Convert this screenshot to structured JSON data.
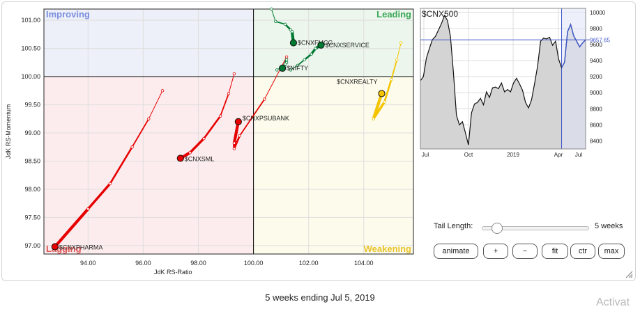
{
  "rrg": {
    "quadrants": {
      "improving": {
        "label": "Improving",
        "color": "#7b8ee0"
      },
      "leading": {
        "label": "Leading",
        "color": "#3aa757"
      },
      "weakening": {
        "label": "Weakening",
        "color": "#e9c32a"
      },
      "lagging": {
        "label": "Lagging",
        "color": "#e05353"
      }
    },
    "xlabel": "JdK RS-Ratio",
    "ylabel": "JdK RS-Momentum",
    "xlim": [
      92.4,
      105.8
    ],
    "ylim": [
      96.85,
      101.2
    ],
    "xticks": [
      "94.00",
      "96.00",
      "98.00",
      "100.00",
      "102.00",
      "104.00"
    ],
    "xtick_values": [
      94,
      96,
      98,
      100,
      102,
      104
    ],
    "yticks": [
      "101.00",
      "100.50",
      "100.00",
      "99.50",
      "99.00",
      "98.50",
      "98.00",
      "97.50",
      "97.00"
    ],
    "ytick_values": [
      101,
      100.5,
      100,
      99.5,
      99,
      98.5,
      98,
      97.5,
      97
    ],
    "center": [
      100,
      100
    ]
  },
  "chart_data": [
    {
      "type": "scatter",
      "title": "",
      "xlabel": "JdK RS-Ratio",
      "ylabel": "JdK RS-Momentum",
      "xlim": [
        92.4,
        105.8
      ],
      "ylim": [
        96.85,
        101.2
      ],
      "grid": true,
      "series": [
        {
          "name": "$CNXPHARMA",
          "color": "#e60000",
          "tail": [
            [
              96.7,
              99.75
            ],
            [
              96.2,
              99.25
            ],
            [
              95.6,
              98.75
            ],
            [
              94.8,
              98.1
            ],
            [
              94.0,
              97.65
            ],
            [
              92.8,
              96.98
            ]
          ]
        },
        {
          "name": "$CNXSML",
          "color": "#e60000",
          "tail": [
            [
              99.3,
              100.05
            ],
            [
              99.1,
              99.7
            ],
            [
              98.8,
              99.3
            ],
            [
              98.2,
              98.9
            ],
            [
              97.7,
              98.65
            ],
            [
              97.35,
              98.55
            ]
          ]
        },
        {
          "name": "$CNXPSUBANK",
          "color": "#e60000",
          "tail": [
            [
              101.2,
              100.35
            ],
            [
              100.4,
              99.6
            ],
            [
              99.5,
              98.95
            ],
            [
              99.3,
              98.72
            ],
            [
              99.3,
              98.82
            ],
            [
              99.45,
              99.2
            ]
          ]
        },
        {
          "name": "$CNXFMCG",
          "color": "#007a33",
          "tail": [
            [
              100.65,
              101.2
            ],
            [
              100.8,
              100.98
            ],
            [
              101.15,
              100.93
            ],
            [
              101.35,
              100.83
            ],
            [
              101.4,
              100.8
            ],
            [
              101.45,
              100.6
            ]
          ]
        },
        {
          "name": "$CNXSERVICE",
          "color": "#007a33",
          "tail": [
            [
              101.35,
              100.12
            ],
            [
              101.6,
              100.2
            ],
            [
              101.85,
              100.3
            ],
            [
              102.1,
              100.4
            ],
            [
              102.25,
              100.5
            ],
            [
              102.45,
              100.56
            ]
          ]
        },
        {
          "name": "$NIFTY",
          "color": "#007a33",
          "tail": [
            [
              100.85,
              100.12
            ],
            [
              101.05,
              100.18
            ],
            [
              101.2,
              100.25
            ],
            [
              101.2,
              100.3
            ],
            [
              101.15,
              100.22
            ],
            [
              101.05,
              100.15
            ]
          ]
        },
        {
          "name": "$CNXREALTY",
          "color": "#f5c400",
          "tail": [
            [
              105.35,
              100.6
            ],
            [
              105.2,
              100.3
            ],
            [
              105.0,
              99.95
            ],
            [
              104.75,
              99.55
            ],
            [
              104.35,
              99.25
            ],
            [
              104.65,
              99.7
            ]
          ]
        }
      ]
    },
    {
      "type": "line",
      "title": "$CNX500",
      "x_labels": [
        "Jul",
        "Oct",
        "2019",
        "Apr",
        "Jul"
      ],
      "ylim": [
        8300,
        10050
      ],
      "yticks": [
        8400,
        8600,
        8800,
        9000,
        9200,
        9400,
        9600,
        9800,
        10000
      ],
      "current_value": "9657.65",
      "values": [
        9150,
        9200,
        9430,
        9550,
        9660,
        9700,
        9780,
        9860,
        9960,
        9900,
        9700,
        9250,
        8720,
        8600,
        8640,
        8500,
        8350,
        8750,
        8860,
        8880,
        8930,
        8850,
        9010,
        8940,
        9060,
        9070,
        9050,
        9120,
        9010,
        9040,
        9010,
        9120,
        9180,
        9110,
        9030,
        8880,
        8810,
        8910,
        9110,
        9330,
        9640,
        9680,
        9670,
        9690,
        9590,
        9640,
        9420,
        9310,
        9380,
        9760,
        9850,
        9710,
        9640,
        9570,
        9620,
        9657.65
      ],
      "highlight_start_index": 47
    }
  ],
  "controls": {
    "tail_length_label": "Tail Length:",
    "tail_length_value": "5 weeks",
    "tail_length_fraction": 0.13,
    "buttons": {
      "animate": "animate",
      "plus": "+",
      "minus": "−",
      "fit": "fit",
      "ctr": "ctr",
      "max": "max"
    }
  },
  "footer": {
    "caption": "5 weeks ending Jul 5, 2019",
    "watermark": "Activat"
  }
}
